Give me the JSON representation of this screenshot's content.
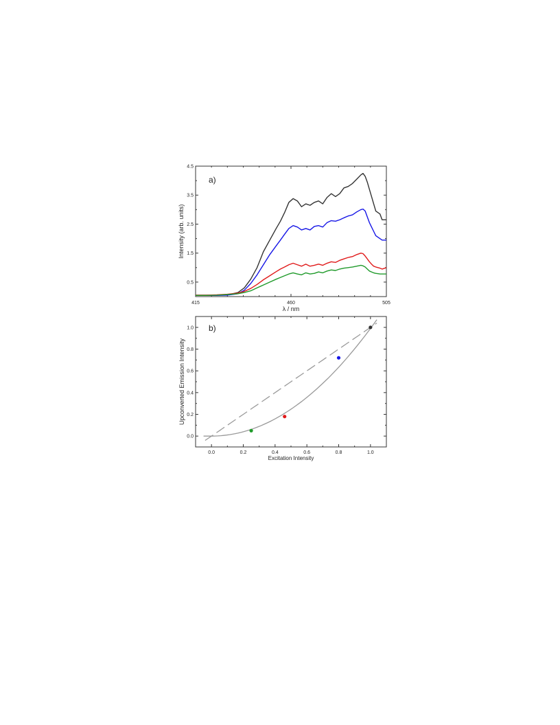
{
  "chart_data": [
    {
      "type": "line",
      "panel_label": "a)",
      "xlabel": "λ / nm",
      "ylabel": "Intensity (arb. units)",
      "xlim": [
        415,
        505
      ],
      "ylim": [
        0,
        4.5
      ],
      "x_ticks": [
        415,
        460,
        505
      ],
      "y_ticks": [
        0.5,
        1.5,
        2.5,
        3.5,
        4.5
      ],
      "y_tick_labels": [
        "0.5",
        "1.5",
        "2.5",
        "3.5",
        "4.5"
      ],
      "x_tick_labels": [
        "415",
        "460",
        "505"
      ],
      "series": [
        {
          "color": "#333333",
          "x": [
            415,
            420,
            425,
            430,
            435,
            438,
            441,
            444,
            447,
            450,
            453,
            455,
            457,
            459,
            461,
            463,
            465,
            467,
            469,
            471,
            473,
            475,
            477,
            479,
            481,
            483,
            485,
            487,
            489,
            491,
            493,
            494,
            495,
            496,
            497,
            498,
            499,
            500,
            502,
            503,
            505
          ],
          "y": [
            0.05,
            0.05,
            0.05,
            0.06,
            0.14,
            0.3,
            0.6,
            1.0,
            1.55,
            1.95,
            2.35,
            2.6,
            2.9,
            3.25,
            3.38,
            3.3,
            3.1,
            3.2,
            3.15,
            3.25,
            3.3,
            3.2,
            3.42,
            3.55,
            3.45,
            3.55,
            3.75,
            3.8,
            3.9,
            4.05,
            4.2,
            4.25,
            4.15,
            3.95,
            3.7,
            3.45,
            3.2,
            2.95,
            2.85,
            2.65,
            2.65
          ]
        },
        {
          "color": "#1515e6",
          "x": [
            415,
            420,
            425,
            430,
            435,
            438,
            441,
            444,
            447,
            450,
            453,
            455,
            457,
            459,
            461,
            463,
            465,
            467,
            469,
            471,
            473,
            475,
            477,
            479,
            481,
            483,
            485,
            487,
            489,
            491,
            493,
            494,
            495,
            496,
            497,
            498,
            499,
            500,
            502,
            503,
            505
          ],
          "y": [
            0.04,
            0.04,
            0.04,
            0.05,
            0.1,
            0.22,
            0.45,
            0.75,
            1.1,
            1.45,
            1.75,
            1.95,
            2.15,
            2.35,
            2.45,
            2.4,
            2.3,
            2.35,
            2.3,
            2.42,
            2.45,
            2.4,
            2.55,
            2.62,
            2.6,
            2.65,
            2.72,
            2.78,
            2.82,
            2.92,
            3.0,
            3.02,
            2.95,
            2.75,
            2.55,
            2.4,
            2.25,
            2.1,
            2.0,
            1.95,
            1.95
          ]
        },
        {
          "color": "#e01a1a",
          "x": [
            415,
            420,
            425,
            430,
            435,
            438,
            441,
            444,
            447,
            450,
            453,
            455,
            457,
            459,
            461,
            463,
            465,
            467,
            469,
            471,
            473,
            475,
            477,
            479,
            481,
            483,
            485,
            487,
            489,
            491,
            493,
            494,
            495,
            496,
            497,
            498,
            499,
            500,
            502,
            503,
            505
          ],
          "y": [
            0.05,
            0.05,
            0.06,
            0.08,
            0.12,
            0.18,
            0.28,
            0.42,
            0.58,
            0.72,
            0.86,
            0.95,
            1.02,
            1.1,
            1.15,
            1.1,
            1.05,
            1.12,
            1.05,
            1.08,
            1.12,
            1.08,
            1.15,
            1.2,
            1.18,
            1.25,
            1.3,
            1.35,
            1.38,
            1.45,
            1.5,
            1.48,
            1.4,
            1.3,
            1.2,
            1.12,
            1.05,
            1.02,
            0.98,
            0.95,
            1.0
          ]
        },
        {
          "color": "#1f9a2a",
          "x": [
            415,
            420,
            425,
            430,
            435,
            438,
            441,
            444,
            447,
            450,
            453,
            455,
            457,
            459,
            461,
            463,
            465,
            467,
            469,
            471,
            473,
            475,
            477,
            479,
            481,
            483,
            485,
            487,
            489,
            491,
            493,
            494,
            495,
            496,
            497,
            498,
            499,
            500,
            502,
            503,
            505
          ],
          "y": [
            0.04,
            0.04,
            0.05,
            0.07,
            0.1,
            0.14,
            0.2,
            0.3,
            0.4,
            0.5,
            0.6,
            0.66,
            0.72,
            0.78,
            0.82,
            0.78,
            0.75,
            0.82,
            0.78,
            0.8,
            0.85,
            0.82,
            0.88,
            0.92,
            0.9,
            0.95,
            0.98,
            1.0,
            1.02,
            1.05,
            1.08,
            1.06,
            1.02,
            0.95,
            0.88,
            0.85,
            0.82,
            0.8,
            0.78,
            0.78,
            0.78
          ]
        }
      ]
    },
    {
      "type": "scatter",
      "panel_label": "b)",
      "xlabel": "Excitation Intensity",
      "ylabel": "Upconverted Emission Intensity",
      "xlim": [
        -0.1,
        1.1
      ],
      "ylim": [
        -0.1,
        1.1
      ],
      "x_ticks": [
        0.0,
        0.2,
        0.4,
        0.6,
        0.8,
        1.0
      ],
      "y_ticks": [
        0.0,
        0.2,
        0.4,
        0.6,
        0.8,
        1.0
      ],
      "x_tick_labels": [
        "0.0",
        "0.2",
        "0.4",
        "0.6",
        "0.8",
        "1.0"
      ],
      "y_tick_labels": [
        "0.0",
        "0.2",
        "0.4",
        "0.6",
        "0.8",
        "1.0"
      ],
      "points": [
        {
          "x": 0.25,
          "y": 0.05,
          "color": "#1f9a2a"
        },
        {
          "x": 0.46,
          "y": 0.18,
          "color": "#e01a1a"
        },
        {
          "x": 0.8,
          "y": 0.72,
          "color": "#1515e6"
        },
        {
          "x": 1.0,
          "y": 1.0,
          "color": "#333333"
        }
      ],
      "fits": [
        {
          "style": "solid",
          "color": "#999999",
          "form": "quadratic",
          "x_range": [
            -0.05,
            1.04
          ]
        },
        {
          "style": "dashed",
          "color": "#999999",
          "form": "linear",
          "x_range": [
            -0.04,
            1.04
          ]
        }
      ]
    }
  ]
}
